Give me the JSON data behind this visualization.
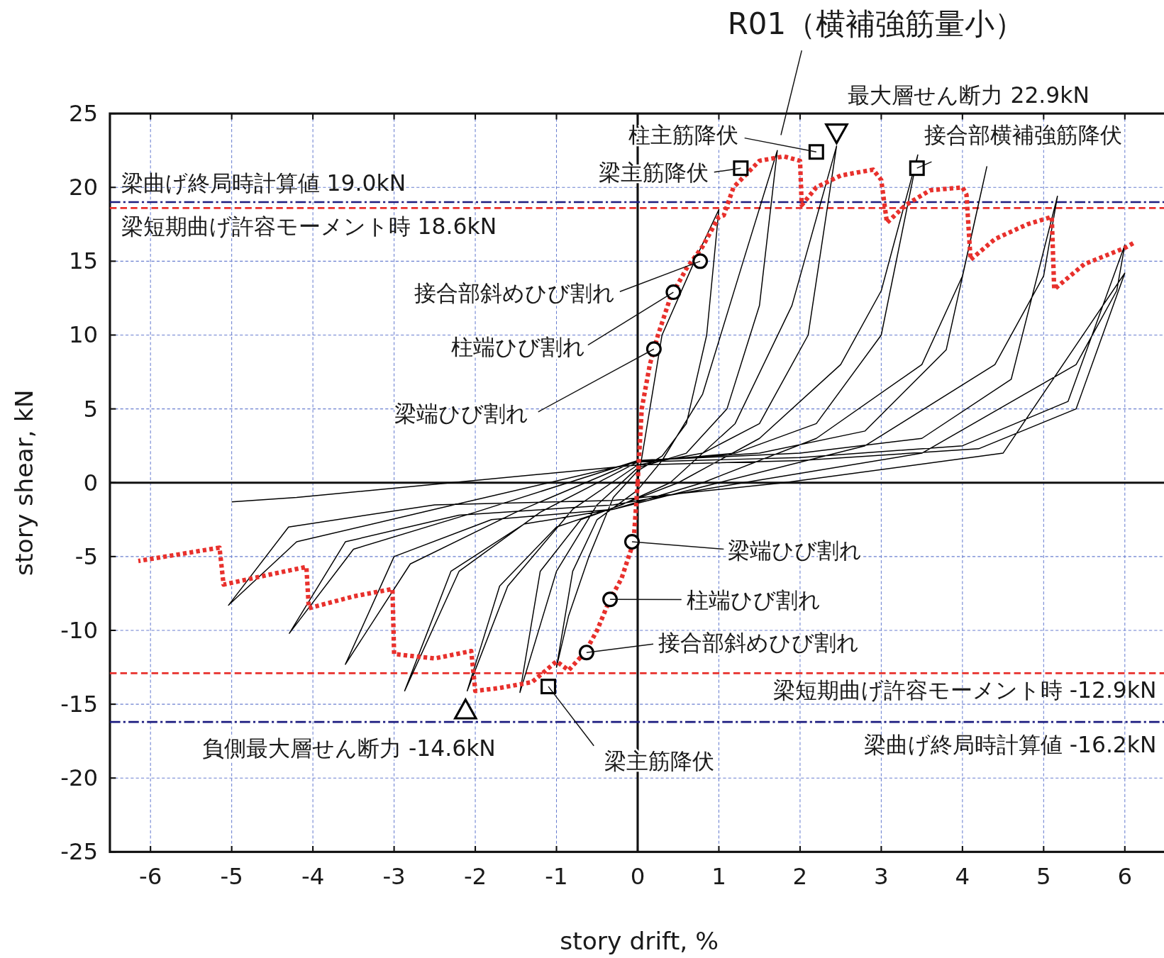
{
  "chart_data": {
    "type": "line",
    "title": "R01（横補強筋量小）",
    "xlabel": "story drift, %",
    "ylabel": "story shear, kN",
    "xlim": [
      -6.5,
      6.5
    ],
    "ylim": [
      -25,
      25
    ],
    "xticks": [
      -6,
      -5,
      -4,
      -3,
      -2,
      -1,
      0,
      1,
      2,
      3,
      4,
      5,
      6
    ],
    "yticks": [
      -25,
      -20,
      -15,
      -10,
      -5,
      0,
      5,
      10,
      15,
      20,
      25
    ],
    "grid": true,
    "series": [
      {
        "color": "#000000",
        "line_style": "solid",
        "x": [
          0,
          0.3,
          0.7,
          1.0,
          0.85,
          0.6,
          0.3,
          0,
          -0.3,
          -0.6,
          -0.85,
          -1.0,
          -0.8,
          -0.5,
          -0.2,
          0,
          0.3,
          0.8,
          1.3,
          1.72,
          1.5,
          1.1,
          0.6,
          0,
          -0.5,
          -1.0,
          -1.45,
          -1.2,
          -0.7,
          -0.2,
          0.4,
          1.2,
          1.9,
          2.45,
          2.1,
          1.5,
          0.8,
          0,
          -0.8,
          -1.6,
          -2.1,
          -1.7,
          -1.0,
          -0.3,
          0.5,
          1.5,
          2.5,
          3.0,
          3.45,
          3.0,
          2.2,
          1.2,
          0,
          -1.2,
          -2.2,
          -2.87,
          -2.3,
          -1.4,
          -0.3,
          0.8,
          2.2,
          3.5,
          4.0,
          4.3,
          3.8,
          2.8,
          1.5,
          0,
          -1.5,
          -2.8,
          -3.6,
          -3.0,
          -1.8,
          -0.3,
          1.0,
          2.8,
          4.4,
          5.0,
          5.17,
          4.6,
          3.5,
          2.0,
          0,
          -2.0,
          -3.5,
          -4.29,
          -3.6,
          -2.2,
          -0.3,
          1.3,
          3.5,
          5.4,
          5.9,
          6.0,
          5.3,
          4.0,
          2.0,
          0,
          -2.5,
          -4.2,
          -5.04,
          -4.3,
          -2.5,
          -0.3,
          1.8,
          4.5,
          6.0,
          5.4,
          4.2,
          2.0,
          0,
          -4.2,
          -5.0
        ],
        "values": [
          0,
          10,
          15,
          18.5,
          10,
          4,
          1.8,
          0.8,
          -1,
          -5,
          -9,
          -12.5,
          -6,
          -2.5,
          -1.3,
          -0.5,
          1.5,
          6,
          15,
          22.5,
          12,
          5,
          2,
          1,
          -1.5,
          -6,
          -14.2,
          -6,
          -2.5,
          -1.5,
          0,
          4,
          12,
          22.8,
          10,
          4,
          2,
          1.2,
          -1.8,
          -7,
          -14.1,
          -7,
          -3,
          -1.7,
          0,
          3,
          8,
          13,
          22.2,
          10,
          4,
          2,
          1.4,
          -2,
          -6,
          -14.1,
          -6,
          -2.8,
          -1.8,
          0,
          3,
          8,
          14,
          21.4,
          9,
          3.5,
          2,
          1.5,
          -2,
          -5.5,
          -12.3,
          -5,
          -2.5,
          -1.8,
          0,
          2.5,
          8,
          14,
          19.4,
          7,
          3,
          2,
          1.5,
          -2,
          -4.5,
          -10.2,
          -4,
          -2.2,
          -1.5,
          0,
          2,
          8,
          13,
          16.1,
          5.5,
          2.5,
          1.7,
          1.4,
          -1.8,
          -4,
          -8.3,
          -3,
          -1.5,
          -1.2,
          0,
          2,
          14.2,
          5,
          2.3,
          1.5,
          1.2,
          -1,
          -1.3
        ]
      },
      {
        "color": "#e8302c",
        "line_style": "dotted",
        "x": [
          0,
          0.05,
          0.15,
          0.25,
          0.4,
          0.6,
          0.8,
          1.0,
          1.06,
          1.18,
          1.5,
          1.8,
          2.0,
          2.02,
          2.2,
          2.5,
          2.9,
          3.0,
          3.07,
          3.3,
          3.6,
          4.0,
          4.05,
          4.1,
          4.4,
          4.8,
          5.1,
          5.13,
          5.5,
          6.0,
          6.13,
          null,
          0,
          -0.05,
          -0.2,
          -0.35,
          -0.5,
          -0.65,
          -0.85,
          -1.0,
          -1.3,
          -1.7,
          -2.0,
          -2.05,
          -2.5,
          -3.0,
          -3.02,
          -3.5,
          -4.05,
          -4.08,
          -4.6,
          -5.1,
          -5.15,
          -6.15
        ],
        "values": [
          0,
          5,
          8,
          10,
          12.5,
          14.5,
          16,
          18,
          18.1,
          20.0,
          21.8,
          22.1,
          21.8,
          18.8,
          20,
          20.8,
          21.2,
          20.5,
          17.6,
          18.8,
          19.8,
          20,
          19.5,
          15.1,
          16.5,
          17.5,
          18,
          13.1,
          14.8,
          15.9,
          16.3,
          null,
          0,
          -4,
          -6.5,
          -8,
          -10,
          -11.5,
          -12.7,
          -12.1,
          -13.5,
          -13.9,
          -14.1,
          -11.4,
          -11.9,
          -11.6,
          -7.2,
          -7.7,
          -8.5,
          -5.7,
          -6.3,
          -6.9,
          -4.4,
          -5.3
        ]
      },
      {
        "type": "scatter",
        "color": "#000000",
        "marker": "circle",
        "x": [
          0.2,
          0.44,
          0.77,
          -0.07,
          -0.34,
          -0.63
        ],
        "values": [
          9.05,
          12.9,
          15.0,
          -4.0,
          -7.9,
          -11.5
        ]
      },
      {
        "type": "scatter",
        "color": "#000000",
        "marker": "square",
        "x": [
          1.27,
          2.2,
          3.44,
          -1.1
        ],
        "values": [
          21.3,
          22.4,
          21.3,
          -13.8
        ]
      },
      {
        "type": "scatter",
        "color": "#000000",
        "marker": "triangle-down",
        "x": [
          2.45
        ],
        "values": [
          23.7
        ]
      },
      {
        "type": "scatter",
        "color": "#000000",
        "marker": "triangle",
        "x": [
          -2.12
        ],
        "values": [
          -15.4
        ]
      }
    ],
    "ref_lines": [
      {
        "axis": "y",
        "value": 19.0,
        "label": "梁曲げ終局時計算値 19.0kN",
        "color": "#1c1c80",
        "line_style": "dashdot"
      },
      {
        "axis": "y",
        "value": 18.6,
        "label": "梁短期曲げ許容モーメント時 18.6kN",
        "color": "#e8302c",
        "line_style": "dashed"
      },
      {
        "axis": "y",
        "value": -12.9,
        "label": "梁短期曲げ許容モーメント時 -12.9kN",
        "color": "#e8302c",
        "line_style": "dashed"
      },
      {
        "axis": "y",
        "value": -16.2,
        "label": "梁曲げ終局時計算値 -16.2kN",
        "color": "#1c1c80",
        "line_style": "dashdot"
      }
    ],
    "annotations": [
      "最大層せん断力 22.9kN",
      {
        "text": "柱主筋降伏",
        "x": 2.2,
        "y": 22.4
      },
      {
        "text": "梁主筋降伏",
        "x": 1.27,
        "y": 21.3
      },
      {
        "text": "接合部横補強筋降伏",
        "x": 3.44,
        "y": 21.3
      },
      {
        "text": "接合部斜めひび割れ",
        "x": 0.77,
        "y": 15.0
      },
      {
        "text": "柱端ひび割れ",
        "x": 0.44,
        "y": 12.9
      },
      {
        "text": "梁端ひび割れ",
        "x": 0.2,
        "y": 9.05
      },
      {
        "text": "梁端ひび割れ",
        "x": -0.07,
        "y": -4.0
      },
      {
        "text": "柱端ひび割れ",
        "x": -0.34,
        "y": -7.9
      },
      {
        "text": "接合部斜めひび割れ",
        "x": -0.63,
        "y": -11.5
      },
      {
        "text": "梁主筋降伏",
        "x": -1.1,
        "y": -13.8
      },
      "負側最大層せん断力 -14.6kN"
    ]
  }
}
